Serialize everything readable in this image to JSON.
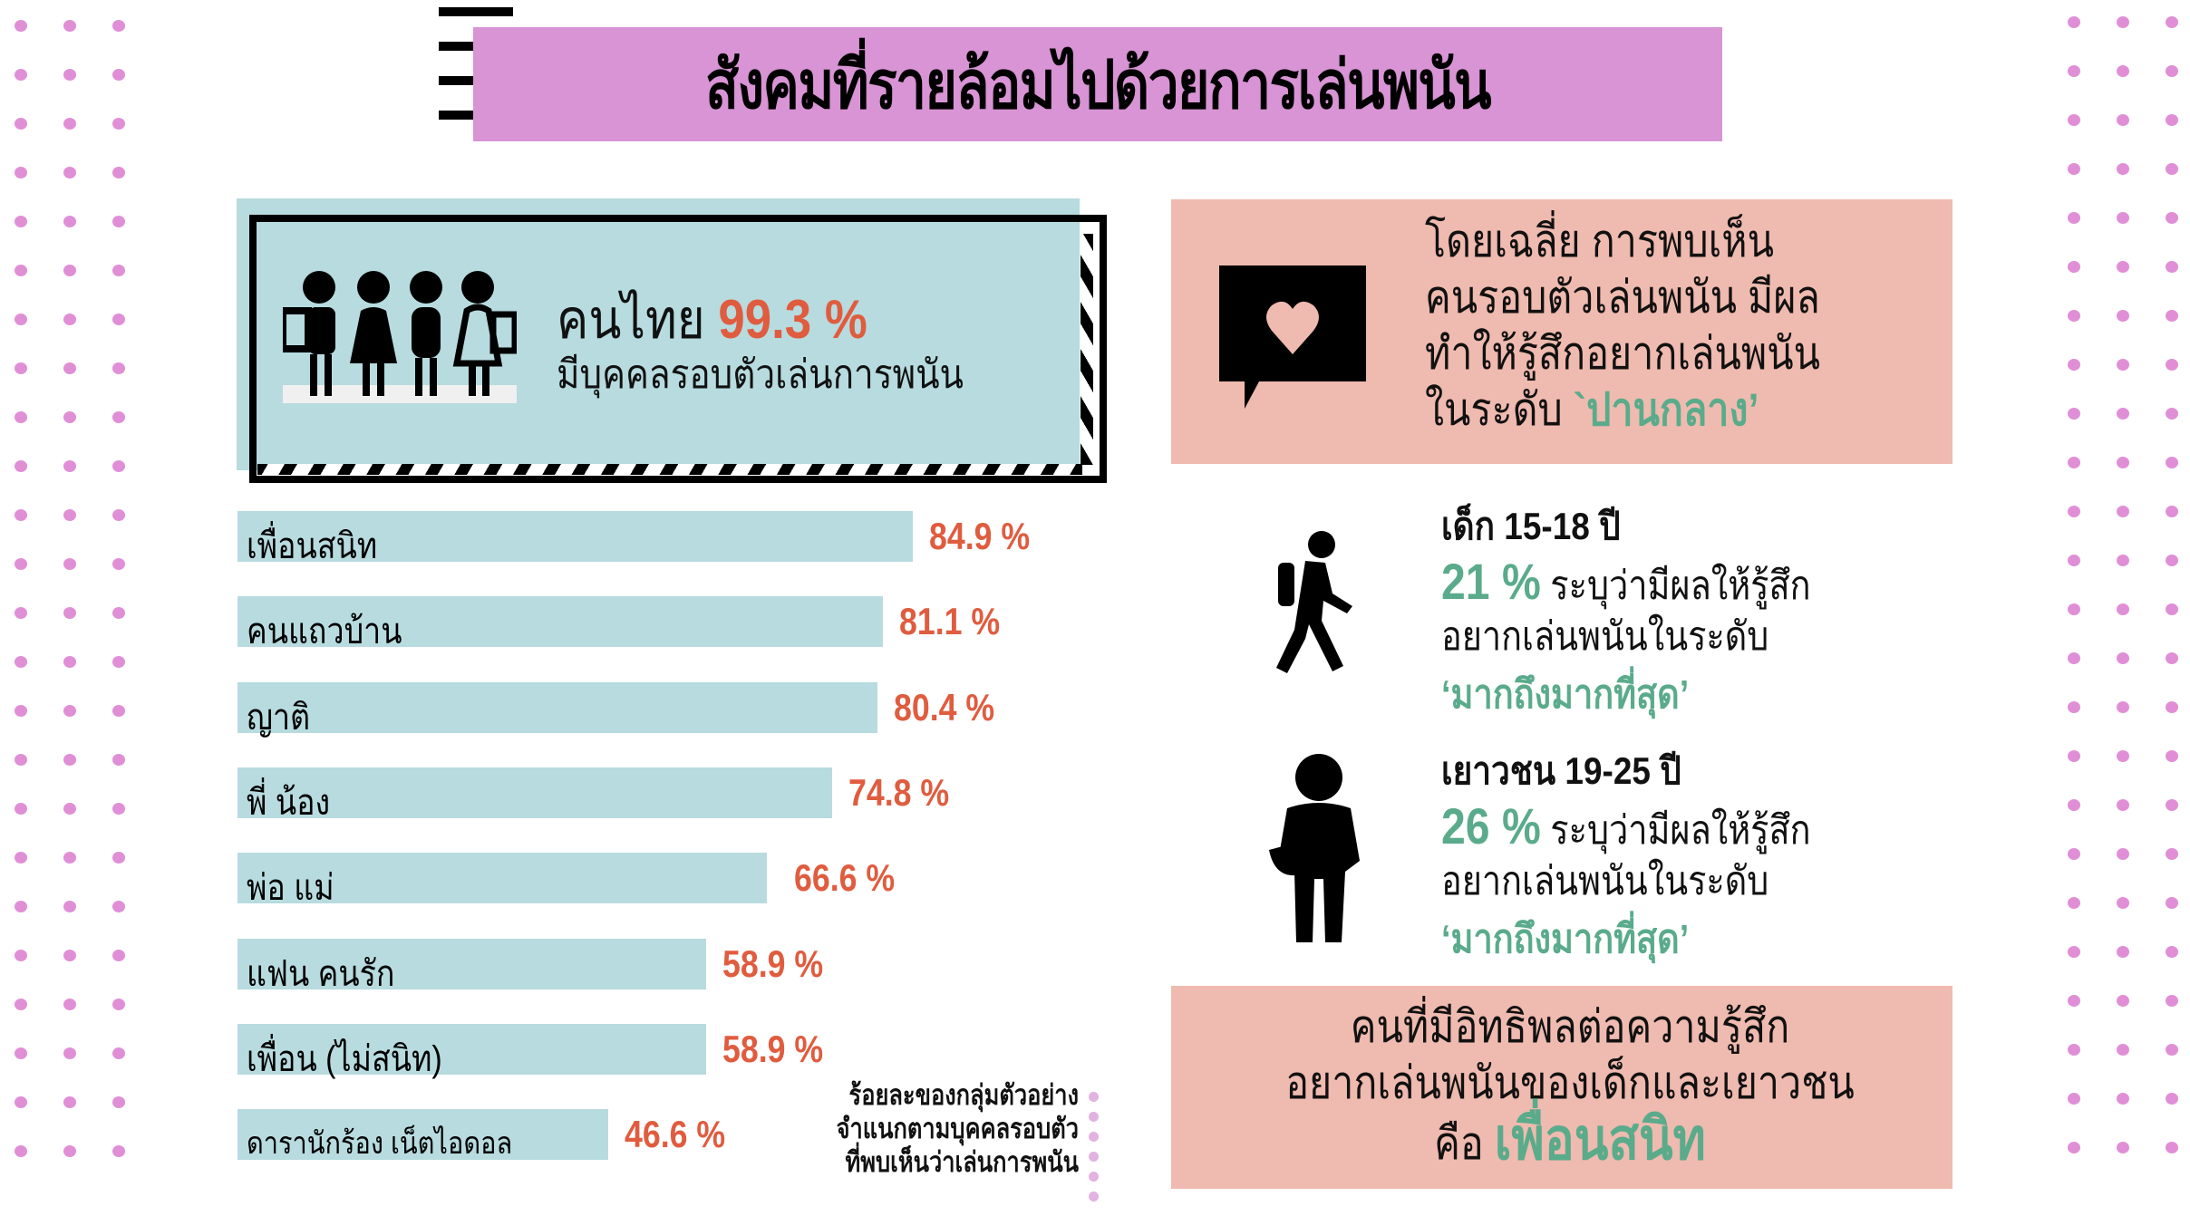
{
  "title": "สังคมที่รายล้อมไปด้วยการเล่นพนัน",
  "hero": {
    "prefix": "คนไทย",
    "percent": "99.3 %",
    "subtitle": "มีบุคคลรอบตัวเล่นการพนัน",
    "icon": "people-group-icon"
  },
  "chart_data": {
    "type": "bar",
    "orientation": "horizontal",
    "title": "ร้อยละของกลุ่มตัวอย่าง จำแนกตามบุคคลรอบตัว ที่พบเห็นว่าเล่นการพนัน",
    "categories": [
      "เพื่อนสนิท",
      "คนแถวบ้าน",
      "ญาติ",
      "พี่ น้อง",
      "พ่อ แม่",
      "แฟน คนรัก",
      "เพื่อน (ไม่สนิท)",
      "ดารานักร้อง เน็ตไอดอล"
    ],
    "values": [
      84.9,
      81.1,
      80.4,
      74.8,
      66.6,
      58.9,
      58.9,
      46.6
    ],
    "value_labels": [
      "84.9 %",
      "81.1 %",
      "80.4 %",
      "74.8 %",
      "66.6 %",
      "58.9 %",
      "58.9 %",
      "46.6 %"
    ],
    "unit": "%",
    "xlabel": "",
    "ylabel": "",
    "grid": false,
    "bar_color": "#b7dbdf",
    "value_color": "#e05c3f"
  },
  "footnote": [
    "ร้อยละของกลุ่มตัวอย่าง",
    "จำแนกตามบุคคลรอบตัว",
    "ที่พบเห็นว่าเล่นการพนัน"
  ],
  "panel_average": {
    "icon": "heart-chat-icon",
    "lines": [
      "โดยเฉลี่ย การพบเห็น",
      "คนรอบตัวเล่นพนัน มีผล",
      "ทำให้รู้สึกอยากเล่นพนัน"
    ],
    "last_prefix": "ในระดับ",
    "level": "`ปานกลาง’"
  },
  "age_groups": [
    {
      "icon": "walking-person-icon",
      "title": "เด็ก 15-18 ปี",
      "percent": "21 %",
      "text1": "ระบุว่ามีผลให้รู้สึก",
      "text2": "อยากเล่นพนันในระดับ",
      "level": "‘มากถึงมากที่สุด’"
    },
    {
      "icon": "student-person-icon",
      "title": "เยาวชน 19-25 ปี",
      "percent": "26 %",
      "text1": "ระบุว่ามีผลให้รู้สึก",
      "text2": "อยากเล่นพนันในระดับ",
      "level": "‘มากถึงมากที่สุด’"
    }
  ],
  "panel_conclusion": {
    "line1": "คนที่มีอิทธิพลต่อความรู้สึก",
    "line2": "อยากเล่นพนันของเด็กและเยาวชน",
    "prefix": "คือ",
    "answer": "เพื่อนสนิท"
  },
  "colors": {
    "title_bg": "#d894d4",
    "card_bg": "#b7dbdf",
    "accent_red": "#e05c3f",
    "accent_green": "#5aab8b",
    "panel_pink": "#efbaaf",
    "dots": "#e08fd6"
  }
}
